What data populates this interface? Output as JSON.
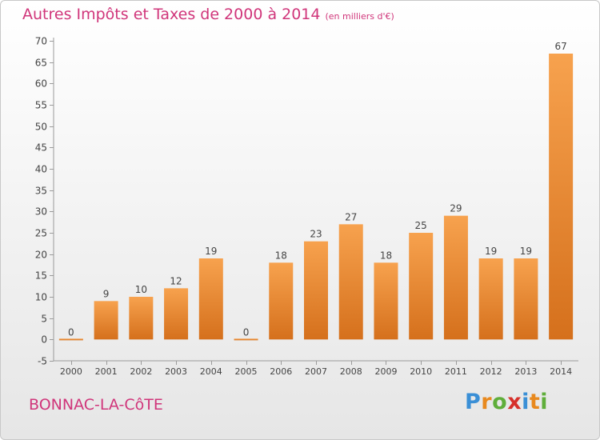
{
  "title": "Autres Impôts et Taxes de 2000 à 2014",
  "unit": "(en milliers d'€)",
  "place": "BONNAC-LA-CôTE",
  "logo": [
    "P",
    "r",
    "o",
    "x",
    "i",
    "t",
    "i"
  ],
  "chart_data": {
    "type": "bar",
    "title": "Autres Impôts et Taxes de 2000 à 2014",
    "subtitle": "(en milliers d'€)",
    "xlabel": "",
    "ylabel": "",
    "ylim": [
      -5,
      70
    ],
    "yticks": [
      -5,
      0,
      5,
      10,
      15,
      20,
      25,
      30,
      35,
      40,
      45,
      50,
      55,
      60,
      65,
      70
    ],
    "grid": false,
    "categories": [
      "2000",
      "2001",
      "2002",
      "2003",
      "2004",
      "2005",
      "2006",
      "2007",
      "2008",
      "2009",
      "2010",
      "2011",
      "2012",
      "2013",
      "2014"
    ],
    "values": [
      0,
      9,
      10,
      12,
      19,
      0,
      18,
      23,
      27,
      18,
      25,
      29,
      19,
      19,
      67
    ],
    "data_labels": [
      "0",
      "9",
      "10",
      "12",
      "19",
      "0",
      "18",
      "23",
      "27",
      "18",
      "25",
      "29",
      "19",
      "19",
      "67"
    ],
    "bar_color": "#e8872a"
  }
}
